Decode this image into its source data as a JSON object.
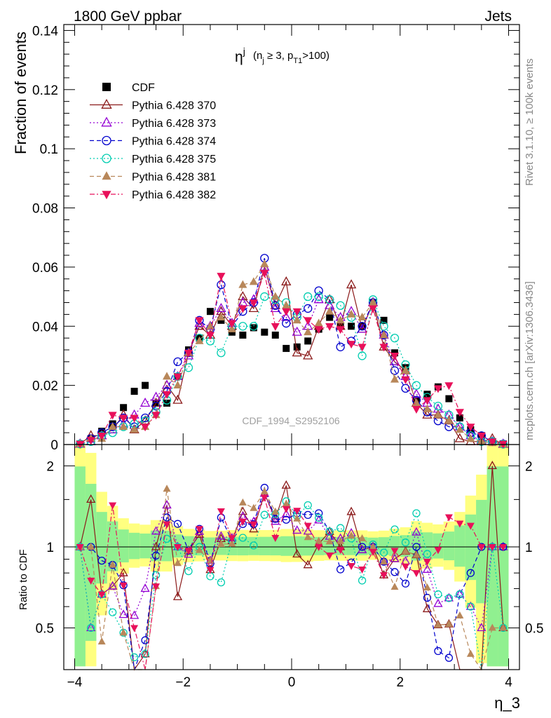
{
  "header": {
    "left_label": "1800 GeV ppbar",
    "right_label": "Jets",
    "side_label_top": "Rivet 3.1.10, ≥ 100k events",
    "side_label_bottom": "mcplots.cern.ch [arXiv:1306.3436]",
    "watermark": "CDF_1994_S2952106"
  },
  "chart_data": {
    "type": "scatter",
    "title_main": "η",
    "title_sup": "j",
    "title_cond": "(n",
    "title_cond_sub": "j",
    "title_cond_mid": " ≥ 3, p",
    "title_cond_sub2": "T1",
    "title_cond_end": ">100)",
    "ylabel": "Fraction of events",
    "xlabel": "η_3",
    "ratio_ylabel": "Ratio to CDF",
    "xlim": [
      -4.2,
      4.2
    ],
    "ylim": [
      0,
      0.142
    ],
    "ratio_ylim": [
      0.35,
      2.4
    ],
    "yticks": [
      "0",
      "0.02",
      "0.04",
      "0.06",
      "0.08",
      "0.1",
      "0.12",
      "0.14"
    ],
    "xticks": [
      "−4",
      "−2",
      "0",
      "2",
      "4"
    ],
    "ratio_yticks": [
      "0.5",
      "1",
      "2"
    ],
    "x": [
      -3.9,
      -3.7,
      -3.5,
      -3.3,
      -3.1,
      -2.9,
      -2.7,
      -2.5,
      -2.3,
      -2.1,
      -1.9,
      -1.7,
      -1.5,
      -1.3,
      -1.1,
      -0.9,
      -0.7,
      -0.5,
      -0.3,
      -0.1,
      0.1,
      0.3,
      0.5,
      0.7,
      0.9,
      1.1,
      1.3,
      1.5,
      1.7,
      1.9,
      2.1,
      2.3,
      2.5,
      2.7,
      2.9,
      3.1,
      3.3,
      3.5,
      3.7,
      3.9
    ],
    "series": [
      {
        "name": "CDF",
        "color": "#000000",
        "marker": "square-filled",
        "dash": "none",
        "values": [
          0.0002,
          0.002,
          0.0045,
          0.007,
          0.0125,
          0.018,
          0.02,
          0.014,
          0.014,
          0.023,
          0.032,
          0.036,
          0.045,
          0.042,
          0.038,
          0.037,
          0.0395,
          0.038,
          0.037,
          0.0325,
          0.033,
          0.035,
          0.039,
          0.043,
          0.04,
          0.04,
          0.04,
          0.048,
          0.042,
          0.031,
          0.026,
          0.015,
          0.017,
          0.0195,
          0.0155,
          0.009,
          0.005,
          0.003,
          0.001,
          0.0002
        ]
      },
      {
        "name": "Pythia 6.428 370",
        "color": "#8b1a1a",
        "marker": "triangle-open",
        "dash": "solid",
        "values": [
          0.0002,
          0.003,
          0.003,
          0.005,
          0.01,
          0.005,
          0.008,
          0.014,
          0.02,
          0.015,
          0.031,
          0.04,
          0.037,
          0.045,
          0.04,
          0.05,
          0.046,
          0.06,
          0.047,
          0.055,
          0.031,
          0.03,
          0.04,
          0.049,
          0.04,
          0.054,
          0.039,
          0.048,
          0.033,
          0.028,
          0.025,
          0.014,
          0.01,
          0.01,
          0.008,
          0.002,
          0.001,
          0.001,
          0.002,
          0.0001
        ]
      },
      {
        "name": "Pythia 6.428 373",
        "color": "#9400d3",
        "marker": "triangle-open",
        "dash": "dotted",
        "values": [
          0.0002,
          0.001,
          0.003,
          0.005,
          0.007,
          0.01,
          0.014,
          0.016,
          0.02,
          0.023,
          0.03,
          0.041,
          0.04,
          0.046,
          0.041,
          0.048,
          0.049,
          0.06,
          0.046,
          0.043,
          0.038,
          0.04,
          0.049,
          0.047,
          0.043,
          0.045,
          0.039,
          0.048,
          0.037,
          0.028,
          0.023,
          0.017,
          0.014,
          0.012,
          0.01,
          0.006,
          0.003,
          0.0015,
          0.001,
          0.0002
        ]
      },
      {
        "name": "Pythia 6.428 374",
        "color": "#0000cd",
        "marker": "circle-open",
        "dash": "dashed",
        "values": [
          0.0002,
          0.002,
          0.004,
          0.006,
          0.009,
          0.006,
          0.009,
          0.013,
          0.018,
          0.028,
          0.031,
          0.042,
          0.039,
          0.054,
          0.04,
          0.045,
          0.048,
          0.063,
          0.047,
          0.041,
          0.044,
          0.046,
          0.052,
          0.049,
          0.033,
          0.035,
          0.04,
          0.048,
          0.037,
          0.025,
          0.019,
          0.015,
          0.011,
          0.008,
          0.006,
          0.006,
          0.004,
          0.003,
          0.001,
          0.0002
        ]
      },
      {
        "name": "Pythia 6.428 375",
        "color": "#00cdb0",
        "marker": "circle-open",
        "dash": "dotted",
        "values": [
          0.0002,
          0.001,
          0.003,
          0.004,
          0.006,
          0.007,
          0.008,
          0.011,
          0.015,
          0.023,
          0.026,
          0.036,
          0.035,
          0.031,
          0.04,
          0.04,
          0.04,
          0.05,
          0.049,
          0.048,
          0.043,
          0.05,
          0.05,
          0.049,
          0.047,
          0.043,
          0.03,
          0.049,
          0.04,
          0.036,
          0.027,
          0.02,
          0.016,
          0.013,
          0.01,
          0.006,
          0.003,
          0.001,
          0.001,
          0.0001
        ]
      },
      {
        "name": "Pythia 6.428 381",
        "color": "#b8875a",
        "marker": "triangle-filled",
        "dash": "dashed",
        "values": [
          0.0002,
          0.002,
          0.002,
          0.006,
          0.006,
          0.005,
          0.006,
          0.01,
          0.023,
          0.02,
          0.031,
          0.035,
          0.04,
          0.043,
          0.039,
          0.054,
          0.055,
          0.061,
          0.05,
          0.047,
          0.042,
          0.038,
          0.041,
          0.045,
          0.042,
          0.044,
          0.043,
          0.048,
          0.037,
          0.022,
          0.025,
          0.014,
          0.012,
          0.01,
          0.008,
          0.005,
          0.002,
          0.001,
          0.0005,
          0.0001
        ]
      },
      {
        "name": "Pythia 6.428 382",
        "color": "#e8105a",
        "marker": "triangle-filled-down",
        "dash": "dashdot",
        "values": [
          0.0002,
          0.0015,
          0.003,
          0.01,
          0.009,
          0.009,
          0.006,
          0.01,
          0.017,
          0.023,
          0.031,
          0.042,
          0.037,
          0.057,
          0.041,
          0.046,
          0.048,
          0.058,
          0.04,
          0.045,
          0.045,
          0.042,
          0.039,
          0.04,
          0.039,
          0.034,
          0.033,
          0.046,
          0.033,
          0.03,
          0.022,
          0.012,
          0.015,
          0.019,
          0.02,
          0.011,
          0.006,
          0.003,
          0.001,
          0.0002
        ]
      }
    ],
    "legend_position": "top-left"
  }
}
